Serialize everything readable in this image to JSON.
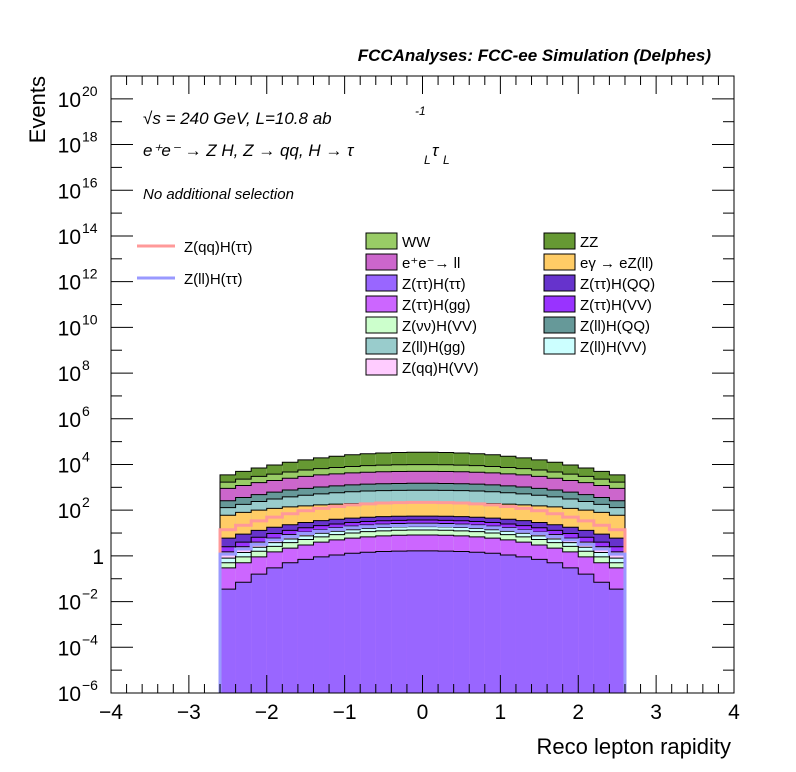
{
  "header": {
    "title": "FCCAnalyses: FCC-ee Simulation (Delphes)"
  },
  "annotations": {
    "sqrt_s_symbol": "√s",
    "energy_lumi": " = 240 GeV, L=10.8 ab",
    "lumi_exponent": "-1",
    "process_main": "e⁺e⁻ → Z H, Z  → qq, H  → τ",
    "process_sub1": "L",
    "process_tau2": "τ",
    "process_sub2": "L",
    "selection": "No additional selection"
  },
  "colors": {
    "WW": "#99cc66",
    "ZZ": "#669933",
    "ee_ll": "#cc66cc",
    "egamma": "#ffcc66",
    "ztautau_htautau": "#9966ff",
    "ztautau_hQQ": "#6633cc",
    "ztautau_hgg": "#cc66ff",
    "ztautau_hVV": "#9933ff",
    "znunu_hVV": "#ccffcc",
    "zll_hQQ": "#669999",
    "zll_hgg": "#99cccc",
    "zll_hVV": "#ccffff",
    "zqq_hVV": "#ffccff",
    "signal_qq": "#ff9999",
    "signal_ll": "#9999ff"
  },
  "chart_data": {
    "type": "bar",
    "title": "FCCAnalyses: FCC-ee Simulation (Delphes)",
    "xlabel": "Reco lepton rapidity",
    "ylabel": "Events",
    "xlim": [
      -4,
      4
    ],
    "ylim": [
      1e-06,
      1e+21
    ],
    "y_scale": "log",
    "bin_edges": [
      -2.6,
      -2.4,
      -2.2,
      -2.0,
      -1.8,
      -1.6,
      -1.4,
      -1.2,
      -1.0,
      -0.8,
      -0.6,
      -0.4,
      -0.2,
      0.0,
      0.2,
      0.4,
      0.6,
      0.8,
      1.0,
      1.2,
      1.4,
      1.6,
      1.8,
      2.0,
      2.2,
      2.4,
      2.6
    ],
    "xticks": [
      -4,
      -3,
      -2,
      -1,
      0,
      1,
      2,
      3,
      4
    ],
    "xtick_labels": [
      "−4",
      "−3",
      "−2",
      "−1",
      "0",
      "1",
      "2",
      "3",
      "4"
    ],
    "yticks_major": [
      {
        "label": "10",
        "exp": "−6"
      },
      {
        "label": "10",
        "exp": "−4"
      },
      {
        "label": "10",
        "exp": "−2"
      },
      {
        "label": "1",
        "exp": ""
      },
      {
        "label": "10",
        "exp": "2"
      },
      {
        "label": "10",
        "exp": "4"
      },
      {
        "label": "10",
        "exp": "6"
      },
      {
        "label": "10",
        "exp": "8"
      },
      {
        "label": "10",
        "exp": "10"
      },
      {
        "label": "10",
        "exp": "12"
      },
      {
        "label": "10",
        "exp": "14"
      },
      {
        "label": "10",
        "exp": "16"
      },
      {
        "label": "10",
        "exp": "18"
      },
      {
        "label": "10",
        "exp": "20"
      }
    ],
    "legend": [
      {
        "name": "WW",
        "key": "WW"
      },
      {
        "name": "ZZ",
        "key": "ZZ"
      },
      {
        "name": "e⁺e⁻→ ll",
        "key": "ee_ll"
      },
      {
        "name": "eγ → eZ(ll)",
        "key": "egamma"
      },
      {
        "name": "Z(ττ)H(ττ)",
        "key": "ztautau_htautau"
      },
      {
        "name": "Z(ττ)H(QQ)",
        "key": "ztautau_hQQ"
      },
      {
        "name": "Z(ττ)H(gg)",
        "key": "ztautau_hgg"
      },
      {
        "name": "Z(ττ)H(VV)",
        "key": "ztautau_hVV"
      },
      {
        "name": "Z(νν)H(VV)",
        "key": "znunu_hVV"
      },
      {
        "name": "Z(ll)H(QQ)",
        "key": "zll_hQQ"
      },
      {
        "name": "Z(ll)H(gg)",
        "key": "zll_hgg"
      },
      {
        "name": "Z(ll)H(VV)",
        "key": "zll_hVV"
      },
      {
        "name": "Z(qq)H(VV)",
        "key": "zqq_hVV"
      }
    ],
    "signal_legend": [
      {
        "name": "Z(qq)H(ττ)",
        "key": "signal_qq"
      },
      {
        "name": "Z(ll)H(ττ)",
        "key": "signal_ll"
      }
    ],
    "stack_cumulative": [
      {
        "name": "Z(ττ)H(ττ)",
        "key": "ztautau_htautau",
        "values": [
          0.035,
          0.07,
          0.16,
          0.3,
          0.5,
          0.7,
          0.9,
          1.1,
          1.3,
          1.45,
          1.55,
          1.62,
          1.65,
          1.65,
          1.62,
          1.55,
          1.45,
          1.3,
          1.1,
          0.9,
          0.7,
          0.5,
          0.3,
          0.16,
          0.07,
          0.035
        ]
      },
      {
        "name": "Z(ττ)H(gg)",
        "key": "ztautau_hgg",
        "values": [
          0.3,
          0.5,
          0.9,
          1.5,
          2.2,
          3,
          4,
          5,
          6,
          6.8,
          7.5,
          8,
          8.2,
          8.2,
          8,
          7.5,
          6.8,
          6,
          5,
          4,
          3,
          2.2,
          1.5,
          0.9,
          0.5,
          0.3
        ]
      },
      {
        "name": "Z(νν)H(VV)",
        "key": "znunu_hVV",
        "values": [
          0.5,
          0.9,
          1.6,
          2.6,
          3.8,
          5.2,
          6.8,
          8.5,
          10,
          11.5,
          12.5,
          13.2,
          13.6,
          13.6,
          13.2,
          12.5,
          11.5,
          10,
          8.5,
          6.8,
          5.2,
          3.8,
          2.6,
          1.6,
          0.9,
          0.5
        ]
      },
      {
        "name": "Z(ll)H(VV)",
        "key": "zll_hVV",
        "values": [
          0.8,
          1.4,
          2.4,
          3.8,
          5.5,
          7.5,
          9.8,
          12,
          14,
          16,
          17.5,
          18.5,
          19,
          19,
          18.5,
          17.5,
          16,
          14,
          12,
          9.8,
          7.5,
          5.5,
          3.8,
          2.4,
          1.4,
          0.8
        ]
      },
      {
        "name": "Z(qq)H(VV)",
        "key": "zqq_hVV",
        "values": [
          1.5,
          2.5,
          4,
          6,
          8.5,
          11,
          14,
          17,
          20,
          22.5,
          24.5,
          26,
          26.8,
          26.8,
          26,
          24.5,
          22.5,
          20,
          17,
          14,
          11,
          8.5,
          6,
          4,
          2.5,
          1.5
        ]
      },
      {
        "name": "Z(ττ)H(VV)",
        "key": "ztautau_hVV",
        "values": [
          2.5,
          4,
          6.5,
          9.5,
          13,
          17,
          21,
          25,
          29,
          32,
          34.5,
          36,
          37,
          37,
          36,
          34.5,
          32,
          29,
          25,
          21,
          17,
          13,
          9.5,
          6.5,
          4,
          2.5
        ]
      },
      {
        "name": "Z(ττ)H(QQ)",
        "key": "ztautau_hQQ",
        "values": [
          6,
          9,
          13,
          18,
          23,
          29,
          35,
          40,
          45,
          49,
          52,
          54,
          55,
          55,
          54,
          52,
          49,
          45,
          40,
          35,
          29,
          23,
          18,
          13,
          9,
          6
        ]
      },
      {
        "name": "eγ → eZ(ll)",
        "key": "egamma",
        "values": [
          60,
          80,
          100,
          120,
          140,
          155,
          170,
          185,
          195,
          205,
          212,
          216,
          218,
          218,
          216,
          212,
          205,
          195,
          185,
          170,
          155,
          140,
          120,
          100,
          80,
          60
        ]
      },
      {
        "name": "Z(ll)H(gg)",
        "key": "zll_hgg",
        "values": [
          130,
          180,
          240,
          310,
          380,
          450,
          520,
          580,
          640,
          690,
          720,
          740,
          750,
          750,
          740,
          720,
          690,
          640,
          580,
          520,
          450,
          380,
          310,
          240,
          180,
          130
        ]
      },
      {
        "name": "Z(ll)H(QQ)",
        "key": "zll_hQQ",
        "values": [
          260,
          360,
          480,
          620,
          760,
          900,
          1040,
          1160,
          1280,
          1380,
          1440,
          1480,
          1500,
          1500,
          1480,
          1440,
          1380,
          1280,
          1160,
          1040,
          900,
          760,
          620,
          480,
          360,
          260
        ]
      },
      {
        "name": "e⁺e⁻→ ll",
        "key": "ee_ll",
        "values": [
          900,
          1200,
          1600,
          2000,
          2500,
          3000,
          3500,
          3900,
          4300,
          4600,
          4800,
          4950,
          5000,
          5000,
          4950,
          4800,
          4600,
          4300,
          3900,
          3500,
          3000,
          2500,
          2000,
          1600,
          1200,
          900
        ]
      },
      {
        "name": "WW",
        "key": "WW",
        "values": [
          1700,
          2300,
          3000,
          3800,
          4700,
          5700,
          6600,
          7400,
          8200,
          8900,
          9400,
          9700,
          9800,
          9800,
          9700,
          9400,
          8900,
          8200,
          7400,
          6600,
          5700,
          4700,
          3800,
          3000,
          2300,
          1700
        ]
      },
      {
        "name": "ZZ",
        "key": "ZZ",
        "values": [
          3500,
          5000,
          7000,
          9500,
          12500,
          16000,
          19500,
          23000,
          26500,
          29500,
          32000,
          33500,
          34500,
          34500,
          33500,
          32000,
          29500,
          26500,
          23000,
          19500,
          16000,
          12500,
          9500,
          7000,
          5000,
          3500
        ]
      }
    ],
    "signal_lines": [
      {
        "name": "Z(qq)H(ττ)",
        "key": "signal_qq",
        "values": [
          14,
          22,
          34,
          50,
          70,
          95,
          120,
          145,
          170,
          190,
          205,
          215,
          220,
          220,
          215,
          205,
          190,
          170,
          145,
          120,
          95,
          70,
          50,
          34,
          22,
          14
        ]
      },
      {
        "name": "Z(ll)H(ττ)",
        "key": "signal_ll",
        "values": [
          1.2,
          2,
          3.2,
          5,
          7,
          9.5,
          12,
          14.5,
          17,
          19,
          20.5,
          21.5,
          22,
          22,
          21.5,
          20.5,
          19,
          17,
          14.5,
          12,
          9.5,
          7,
          5,
          3.2,
          2,
          1.2
        ]
      }
    ]
  }
}
